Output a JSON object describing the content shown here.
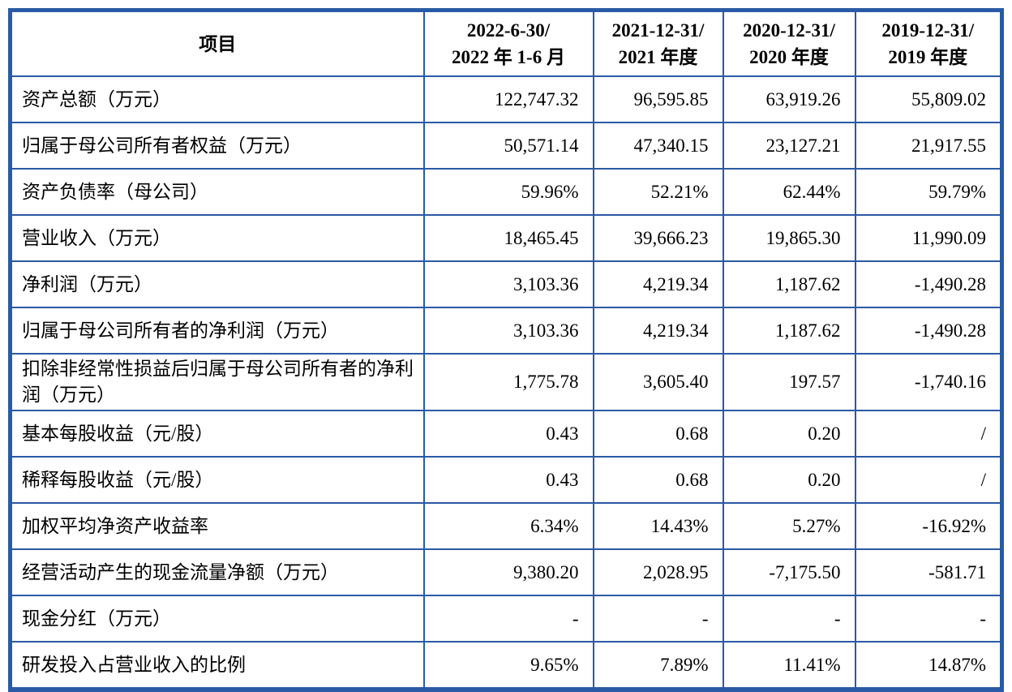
{
  "colors": {
    "table_border": "#2a5aa5",
    "background": "#ffffff",
    "text": "#000000"
  },
  "table": {
    "header": {
      "item_label": "项目",
      "periods": [
        {
          "line1": "2022-6-30/",
          "line2": "2022 年 1-6 月"
        },
        {
          "line1": "2021-12-31/",
          "line2": "2021 年度"
        },
        {
          "line1": "2020-12-31/",
          "line2": "2020 年度"
        },
        {
          "line1": "2019-12-31/",
          "line2": "2019 年度"
        }
      ]
    },
    "rows": [
      {
        "label": "资产总额（万元）",
        "values": [
          "122,747.32",
          "96,595.85",
          "63,919.26",
          "55,809.02"
        ]
      },
      {
        "label": "归属于母公司所有者权益（万元）",
        "values": [
          "50,571.14",
          "47,340.15",
          "23,127.21",
          "21,917.55"
        ]
      },
      {
        "label": "资产负债率（母公司）",
        "values": [
          "59.96%",
          "52.21%",
          "62.44%",
          "59.79%"
        ]
      },
      {
        "label": "营业收入（万元）",
        "values": [
          "18,465.45",
          "39,666.23",
          "19,865.30",
          "11,990.09"
        ]
      },
      {
        "label": "净利润（万元）",
        "values": [
          "3,103.36",
          "4,219.34",
          "1,187.62",
          "-1,490.28"
        ]
      },
      {
        "label": "归属于母公司所有者的净利润（万元）",
        "values": [
          "3,103.36",
          "4,219.34",
          "1,187.62",
          "-1,490.28"
        ]
      },
      {
        "label": "扣除非经常性损益后归属于母公司所有者的净利润（万元）",
        "values": [
          "1,775.78",
          "3,605.40",
          "197.57",
          "-1,740.16"
        ]
      },
      {
        "label": "基本每股收益（元/股）",
        "values": [
          "0.43",
          "0.68",
          "0.20",
          "/"
        ]
      },
      {
        "label": "稀释每股收益（元/股）",
        "values": [
          "0.43",
          "0.68",
          "0.20",
          "/"
        ]
      },
      {
        "label": "加权平均净资产收益率",
        "values": [
          "6.34%",
          "14.43%",
          "5.27%",
          "-16.92%"
        ]
      },
      {
        "label": "经营活动产生的现金流量净额（万元）",
        "values": [
          "9,380.20",
          "2,028.95",
          "-7,175.50",
          "-581.71"
        ]
      },
      {
        "label": "现金分红（万元）",
        "values": [
          "-",
          "-",
          "-",
          "-"
        ]
      },
      {
        "label": "研发投入占营业收入的比例",
        "values": [
          "9.65%",
          "7.89%",
          "11.41%",
          "14.87%"
        ]
      }
    ]
  }
}
